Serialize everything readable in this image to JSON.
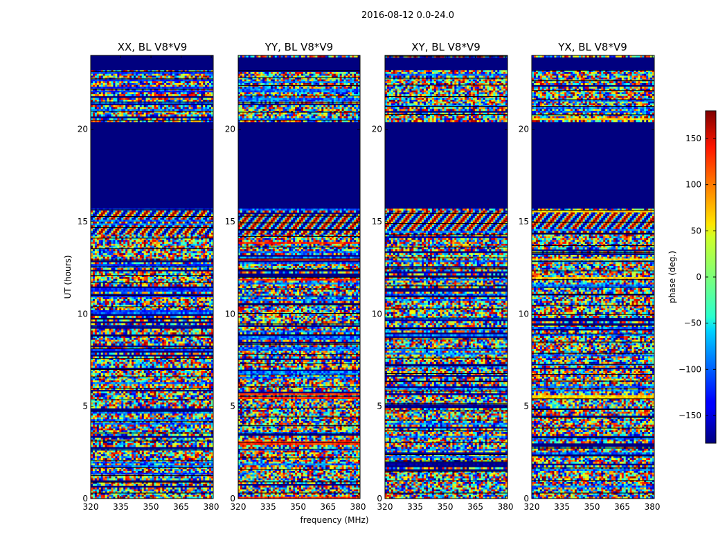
{
  "figure_title": "2016-08-12 0.0-24.0",
  "chart_data": {
    "type": "heatmap",
    "title": "2016-08-12 0.0-24.0",
    "xlabel": "frequency (MHz)",
    "ylabel": "UT (hours)",
    "xlim": [
      320,
      381
    ],
    "ylim": [
      0,
      24
    ],
    "xticks": [
      320,
      335,
      350,
      365,
      380
    ],
    "yticks": [
      0,
      5,
      10,
      15,
      20
    ],
    "colorbar": {
      "label": "phase (deg.)",
      "range": [
        -180,
        180
      ],
      "ticks": [
        150,
        100,
        50,
        0,
        -50,
        -100,
        -150
      ],
      "tick_labels": [
        "150",
        "100",
        "50",
        "0",
        "−50",
        "−100",
        "−150"
      ],
      "colormap": "jet"
    },
    "panels": [
      {
        "title": "XX, BL V8*V9",
        "hot_phase_deg": -120
      },
      {
        "title": "YY, BL V8*V9",
        "hot_phase_deg": 120
      },
      {
        "title": "XY, BL V8*V9",
        "hot_phase_deg": -175
      },
      {
        "title": "YX, BL V8*V9",
        "hot_phase_deg": 60
      }
    ],
    "flagged_intervals_hours": [
      [
        15.7,
        20.4
      ],
      [
        23.2,
        23.9
      ]
    ]
  },
  "colors": {
    "background": "#ffffff",
    "flagged": "#00007f",
    "axis": "#000000"
  }
}
